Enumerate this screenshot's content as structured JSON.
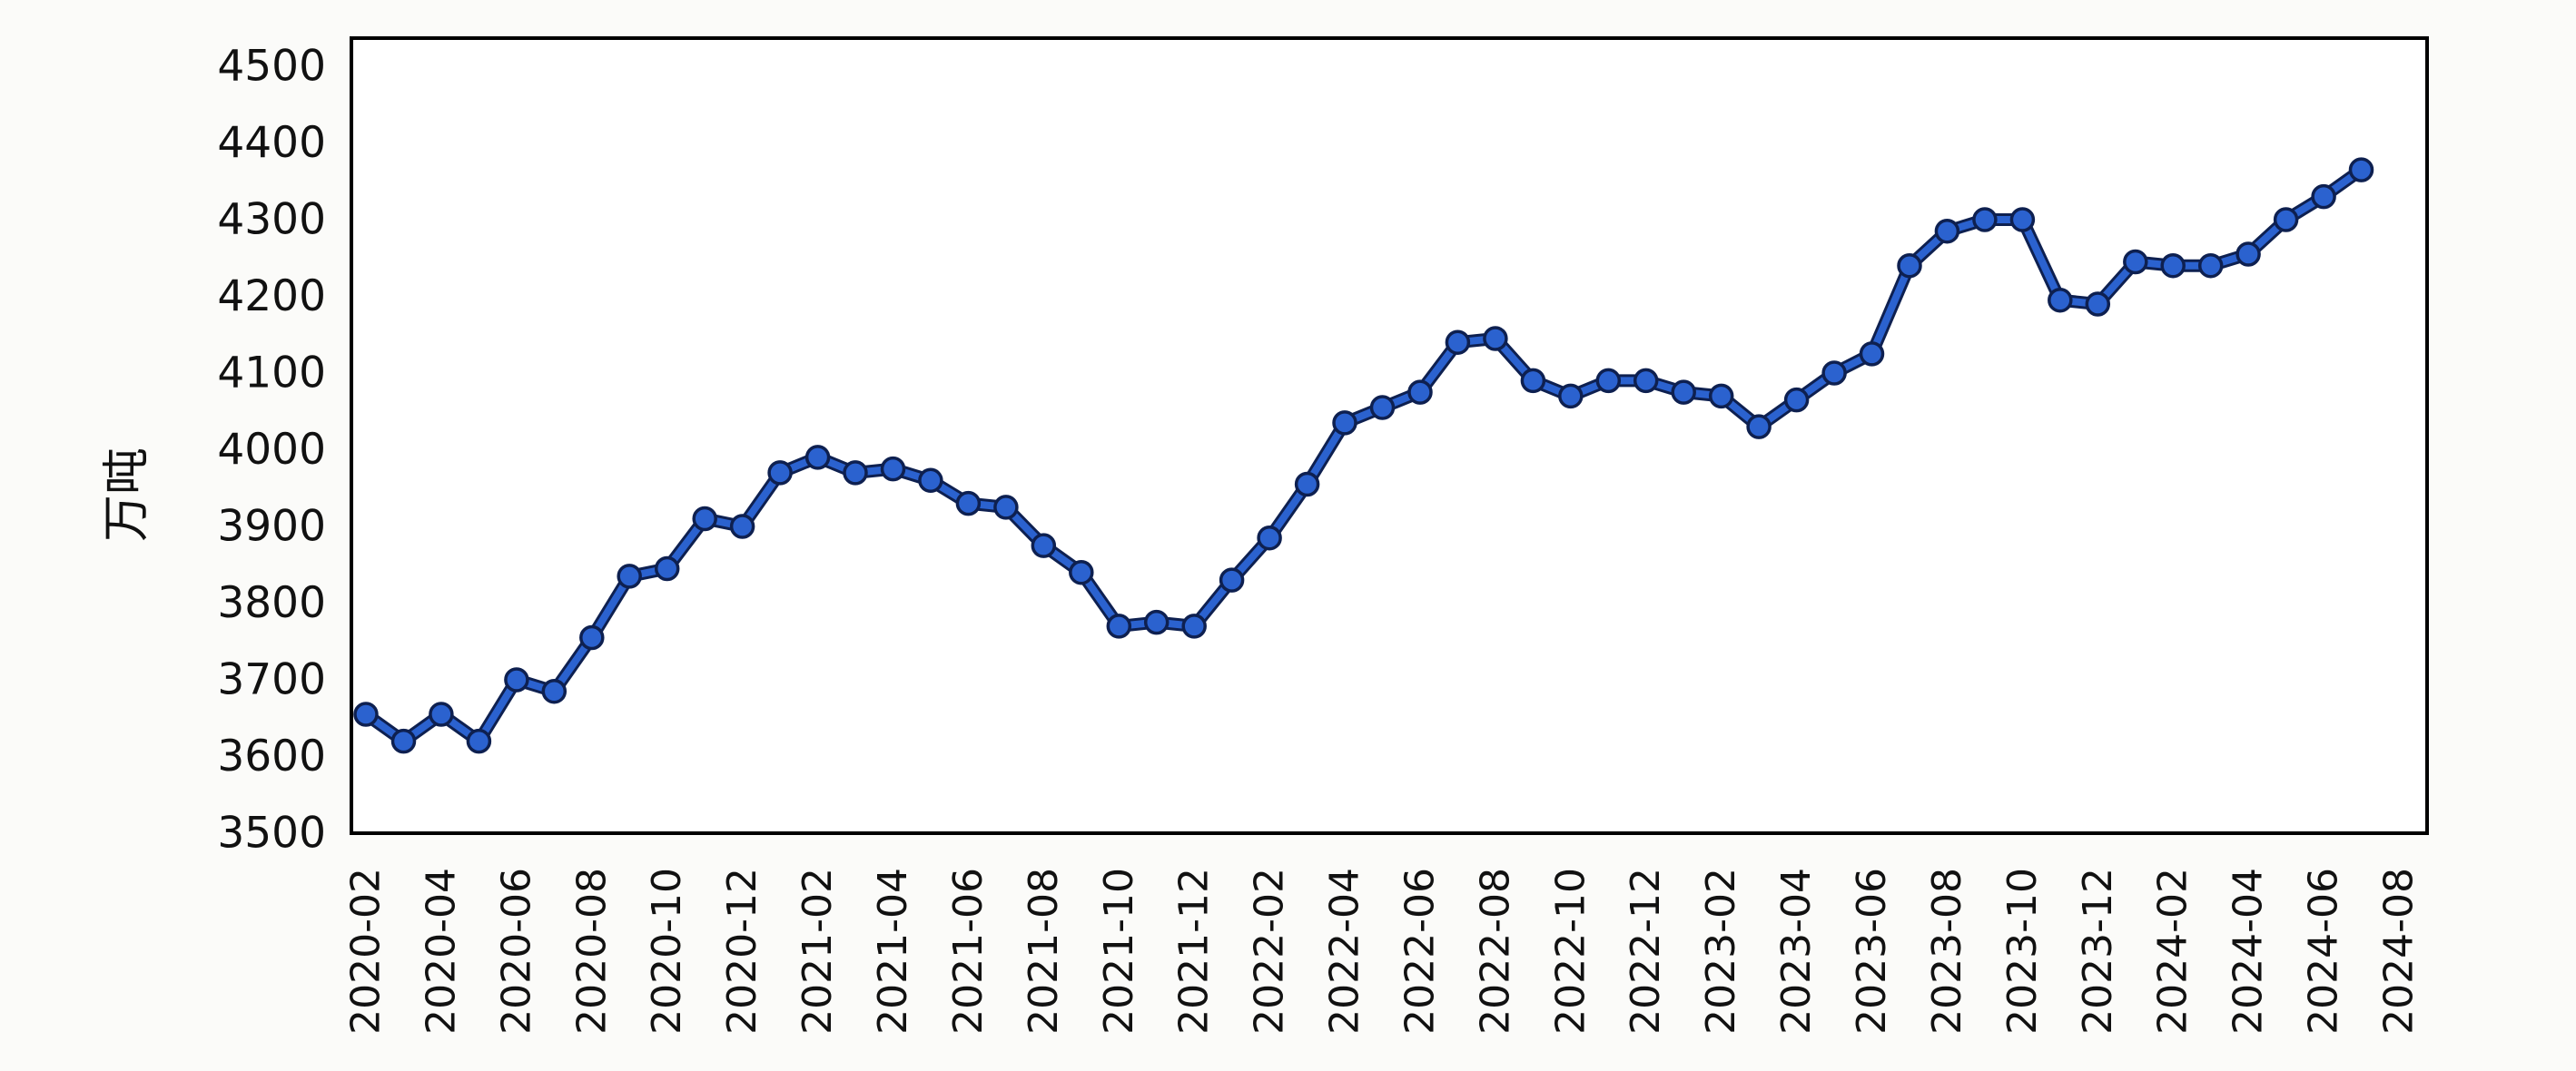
{
  "chart_data": {
    "type": "line",
    "title": "",
    "xlabel": "",
    "ylabel": "万吨",
    "ylim": [
      3500,
      4500
    ],
    "yticks": [
      3500,
      3600,
      3700,
      3800,
      3900,
      4000,
      4100,
      4200,
      4300,
      4400,
      4500
    ],
    "grid": false,
    "legend": "none",
    "x": [
      "2020-02",
      "2020-03",
      "2020-04",
      "2020-05",
      "2020-06",
      "2020-07",
      "2020-08",
      "2020-09",
      "2020-10",
      "2020-11",
      "2020-12",
      "2021-01",
      "2021-02",
      "2021-03",
      "2021-04",
      "2021-05",
      "2021-06",
      "2021-07",
      "2021-08",
      "2021-09",
      "2021-10",
      "2021-11",
      "2021-12",
      "2022-01",
      "2022-02",
      "2022-03",
      "2022-04",
      "2022-05",
      "2022-06",
      "2022-07",
      "2022-08",
      "2022-09",
      "2022-10",
      "2022-11",
      "2022-12",
      "2023-01",
      "2023-02",
      "2023-03",
      "2023-04",
      "2023-05",
      "2023-06",
      "2023-07",
      "2023-08",
      "2023-09",
      "2023-10",
      "2023-11",
      "2023-12",
      "2024-01",
      "2024-02",
      "2024-03",
      "2024-04",
      "2024-05",
      "2024-06",
      "2024-07"
    ],
    "values": [
      3655,
      3620,
      3655,
      3620,
      3700,
      3685,
      3755,
      3835,
      3845,
      3910,
      3900,
      3970,
      3990,
      3970,
      3975,
      3960,
      3930,
      3925,
      3875,
      3840,
      3770,
      3775,
      3770,
      3830,
      3885,
      3955,
      4035,
      4055,
      4075,
      4140,
      4145,
      4090,
      4070,
      4090,
      4090,
      4075,
      4070,
      4030,
      4065,
      4100,
      4125,
      4240,
      4285,
      4300,
      4300,
      4195,
      4190,
      4245,
      4240,
      4240,
      4255,
      4300,
      4330,
      4365
    ],
    "xtick_labels": [
      "2020-02",
      "2020-04",
      "2020-06",
      "2020-08",
      "2020-10",
      "2020-12",
      "2021-02",
      "2021-04",
      "2021-06",
      "2021-08",
      "2021-10",
      "2021-12",
      "2022-02",
      "2022-04",
      "2022-06",
      "2022-08",
      "2022-10",
      "2022-12",
      "2023-02",
      "2023-04",
      "2023-06",
      "2023-08",
      "2023-10",
      "2023-12",
      "2024-02",
      "2024-04",
      "2024-06",
      "2024-08"
    ],
    "xtick_every": 2,
    "colors": {
      "line": "#2b62cf",
      "line_edge": "#0e2050",
      "marker_fill": "#2b62cf",
      "marker_edge": "#0e2050",
      "axis": "#000000",
      "text": "#111111"
    }
  }
}
